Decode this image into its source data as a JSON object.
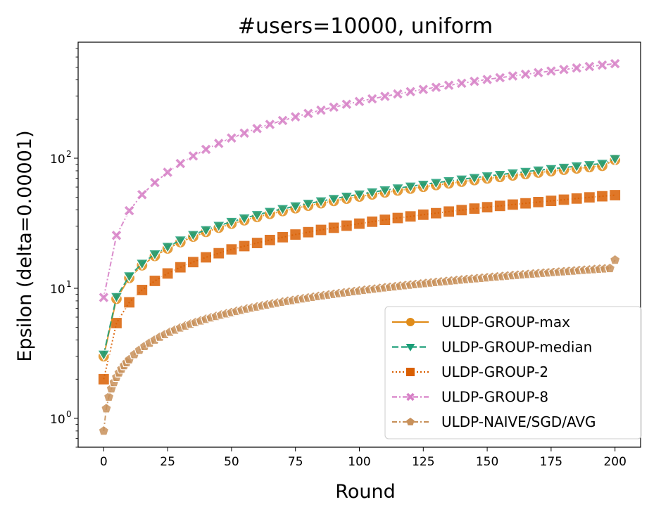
{
  "chart_data": {
    "type": "line",
    "title": "#users=10000, uniform",
    "xlabel": "Round",
    "ylabel": "Epsilon (delta=0.00001)",
    "xlim": [
      -10,
      210
    ],
    "ylim": [
      0.6,
      780
    ],
    "yscale": "log",
    "grid": false,
    "legend_position": "lower-right",
    "x_ticks": [
      0,
      25,
      50,
      75,
      100,
      125,
      150,
      175,
      200
    ],
    "x_tick_labels": [
      "0",
      "25",
      "50",
      "75",
      "100",
      "125",
      "150",
      "175",
      "200"
    ],
    "y_ticks": [
      1,
      10,
      100
    ],
    "y_tick_labels": [
      "10",
      "10",
      "10"
    ],
    "y_tick_exponents": [
      "0",
      "1",
      "2"
    ],
    "series": [
      {
        "name": "ULDP-GROUP-max",
        "color": "#e08c1a",
        "marker": "circle",
        "linestyle": "solid",
        "x": [
          0,
          5,
          10,
          15,
          20,
          25,
          30,
          35,
          40,
          45,
          50,
          55,
          60,
          65,
          70,
          75,
          80,
          85,
          90,
          95,
          100,
          105,
          110,
          115,
          120,
          125,
          130,
          135,
          140,
          145,
          150,
          155,
          160,
          165,
          170,
          175,
          180,
          185,
          190,
          195,
          200
        ],
        "y": [
          3.0,
          8.3,
          12.0,
          15.0,
          17.7,
          20.2,
          22.6,
          24.9,
          27.1,
          29.2,
          31.3,
          33.3,
          35.3,
          37.3,
          39.2,
          41.2,
          43.1,
          45.0,
          46.9,
          48.8,
          50.7,
          52.6,
          54.5,
          56.4,
          58.3,
          60.2,
          62.1,
          64.0,
          65.9,
          67.8,
          69.8,
          71.7,
          73.6,
          75.5,
          77.5,
          79.4,
          81.4,
          83.3,
          85.3,
          87.3,
          97.0
        ]
      },
      {
        "name": "ULDP-GROUP-median",
        "color": "#1a9e77",
        "marker": "triangle-down",
        "linestyle": "dashed",
        "x": [
          0,
          5,
          10,
          15,
          20,
          25,
          30,
          35,
          40,
          45,
          50,
          55,
          60,
          65,
          70,
          75,
          80,
          85,
          90,
          95,
          100,
          105,
          110,
          115,
          120,
          125,
          130,
          135,
          140,
          145,
          150,
          155,
          160,
          165,
          170,
          175,
          180,
          185,
          190,
          195,
          200
        ],
        "y": [
          3.1,
          8.6,
          12.4,
          15.5,
          18.3,
          20.9,
          23.4,
          25.8,
          28.1,
          30.3,
          32.5,
          34.6,
          36.7,
          38.8,
          40.8,
          42.8,
          44.8,
          46.8,
          48.8,
          50.8,
          52.8,
          54.8,
          56.8,
          58.8,
          60.8,
          62.8,
          64.8,
          66.8,
          68.8,
          70.8,
          72.8,
          74.8,
          76.8,
          78.8,
          80.8,
          82.8,
          84.8,
          86.9,
          88.9,
          91.0,
          99.0
        ]
      },
      {
        "name": "ULDP-GROUP-2",
        "color": "#d95f02",
        "marker": "square",
        "linestyle": "dotted",
        "x": [
          0,
          5,
          10,
          15,
          20,
          25,
          30,
          35,
          40,
          45,
          50,
          55,
          60,
          65,
          70,
          75,
          80,
          85,
          90,
          95,
          100,
          105,
          110,
          115,
          120,
          125,
          130,
          135,
          140,
          145,
          150,
          155,
          160,
          165,
          170,
          175,
          180,
          185,
          190,
          195,
          200
        ],
        "y": [
          2.0,
          5.4,
          7.8,
          9.7,
          11.4,
          13.0,
          14.5,
          15.9,
          17.3,
          18.6,
          19.9,
          21.1,
          22.3,
          23.5,
          24.7,
          25.9,
          27.0,
          28.1,
          29.2,
          30.3,
          31.4,
          32.5,
          33.6,
          34.7,
          35.7,
          36.8,
          37.8,
          38.9,
          39.9,
          41.0,
          42.0,
          43.0,
          44.0,
          45.0,
          46.0,
          47.0,
          48.0,
          49.0,
          50.0,
          51.0,
          52.0
        ]
      },
      {
        "name": "ULDP-GROUP-8",
        "color": "#d67fc6",
        "marker": "x",
        "linestyle": "dashdot",
        "x": [
          0,
          5,
          10,
          15,
          20,
          25,
          30,
          35,
          40,
          45,
          50,
          55,
          60,
          65,
          70,
          75,
          80,
          85,
          90,
          95,
          100,
          105,
          110,
          115,
          120,
          125,
          130,
          135,
          140,
          145,
          150,
          155,
          160,
          165,
          170,
          175,
          180,
          185,
          190,
          195,
          200
        ],
        "y": [
          8.5,
          25.5,
          39.5,
          52.5,
          65.0,
          78.0,
          91.0,
          104.0,
          117.0,
          130.0,
          143.0,
          156.0,
          169.0,
          182.0,
          195.0,
          208.0,
          221.0,
          234.0,
          247.0,
          260.0,
          273.0,
          286.0,
          299.0,
          312.0,
          325.0,
          338.0,
          351.0,
          364.0,
          377.0,
          390.0,
          403.0,
          416.0,
          429.0,
          442.0,
          455.0,
          468.0,
          481.0,
          494.0,
          507.0,
          520.0,
          533.0
        ]
      },
      {
        "name": "ULDP-NAIVE/SGD/AVG",
        "color": "#c8915b",
        "marker": "pentagon",
        "linestyle": "dashdot",
        "x": [
          0,
          1,
          2,
          3,
          4,
          5,
          6,
          7,
          8,
          9,
          10,
          12,
          14,
          16,
          18,
          20,
          22,
          24,
          26,
          28,
          30,
          32,
          34,
          36,
          38,
          40,
          42,
          44,
          46,
          48,
          50,
          52,
          54,
          56,
          58,
          60,
          62,
          64,
          66,
          68,
          70,
          72,
          74,
          76,
          78,
          80,
          82,
          84,
          86,
          88,
          90,
          92,
          94,
          96,
          98,
          100,
          102,
          104,
          106,
          108,
          110,
          112,
          114,
          116,
          118,
          120,
          122,
          124,
          126,
          128,
          130,
          132,
          134,
          136,
          138,
          140,
          142,
          144,
          146,
          148,
          150,
          152,
          154,
          156,
          158,
          160,
          162,
          164,
          166,
          168,
          170,
          172,
          174,
          176,
          178,
          180,
          182,
          184,
          186,
          188,
          190,
          192,
          194,
          196,
          198,
          200
        ],
        "y": [
          0.8,
          1.19,
          1.46,
          1.69,
          1.89,
          2.07,
          2.24,
          2.4,
          2.55,
          2.69,
          2.83,
          3.1,
          3.35,
          3.58,
          3.8,
          4.01,
          4.22,
          4.42,
          4.61,
          4.79,
          4.97,
          5.14,
          5.31,
          5.47,
          5.63,
          5.79,
          5.94,
          6.09,
          6.24,
          6.38,
          6.52,
          6.66,
          6.8,
          6.94,
          7.07,
          7.2,
          7.33,
          7.46,
          7.59,
          7.71,
          7.84,
          7.96,
          8.08,
          8.2,
          8.32,
          8.44,
          8.56,
          8.67,
          8.79,
          8.9,
          9.01,
          9.12,
          9.23,
          9.34,
          9.45,
          9.56,
          9.67,
          9.78,
          9.88,
          9.99,
          10.1,
          10.2,
          10.3,
          10.41,
          10.51,
          10.61,
          10.71,
          10.81,
          10.91,
          11.01,
          11.11,
          11.21,
          11.31,
          11.4,
          11.5,
          11.6,
          11.69,
          11.79,
          11.88,
          11.98,
          12.07,
          12.17,
          12.26,
          12.35,
          12.44,
          12.54,
          12.63,
          12.72,
          12.81,
          12.9,
          12.99,
          13.08,
          13.17,
          13.26,
          13.35,
          13.44,
          13.52,
          13.61,
          13.7,
          13.79,
          13.87,
          13.96,
          14.05,
          14.13,
          14.22,
          16.5
        ]
      }
    ]
  }
}
